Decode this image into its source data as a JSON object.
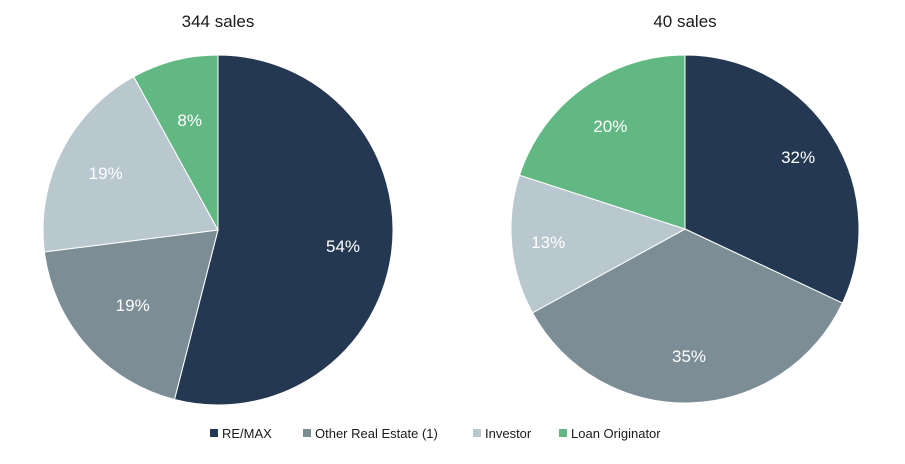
{
  "chart_data": [
    {
      "type": "pie",
      "title": "344 sales",
      "categories": [
        "RE/MAX",
        "Other Real Estate (1)",
        "Investor",
        "Loan Originator"
      ],
      "values": [
        54,
        19,
        19,
        8
      ],
      "labels": [
        "54%",
        "19%",
        "19%",
        "8%"
      ]
    },
    {
      "type": "pie",
      "title": "40 sales",
      "categories": [
        "RE/MAX",
        "Other Real Estate (1)",
        "Investor",
        "Loan Originator"
      ],
      "values": [
        32,
        35,
        13,
        20
      ],
      "labels": [
        "32%",
        "35%",
        "13%",
        "20%"
      ]
    }
  ],
  "legend": {
    "placement": "bottom",
    "items": [
      {
        "label": "RE/MAX",
        "color": "#253852"
      },
      {
        "label": "Other Real Estate (1)",
        "color": "#7d8d96"
      },
      {
        "label": "Investor",
        "color": "#b9c7ce"
      },
      {
        "label": "Loan Originator",
        "color": "#62b883"
      }
    ]
  }
}
